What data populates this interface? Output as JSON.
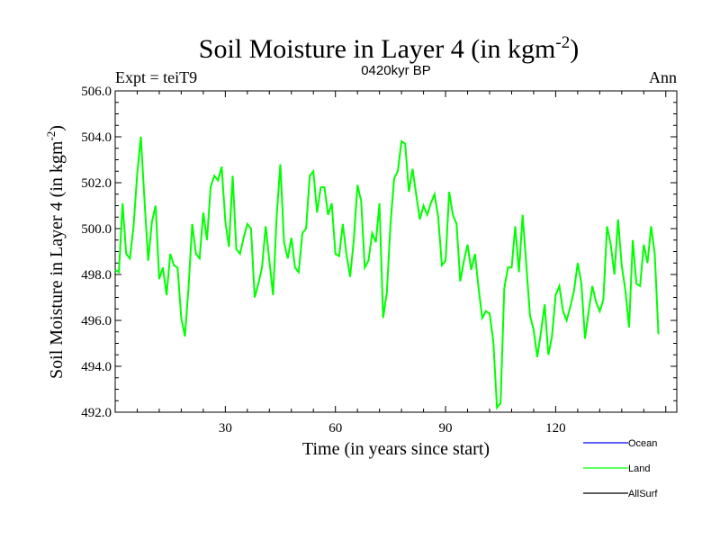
{
  "chart_data": {
    "type": "line",
    "title": "Soil Moisture in Layer 4 (in kgm",
    "title_sup": "-2",
    "title_end": ")",
    "subtitle_left": "Expt = teiT9",
    "subtitle_center": "0420kyr BP",
    "subtitle_right": "Ann",
    "xlabel": "Time (in years since start)",
    "ylabel": "Soil Moisture in Layer 4 (in kgm",
    "ylabel_sup": "-2",
    "ylabel_end": ")",
    "xlim": [
      0,
      153
    ],
    "ylim": [
      492.0,
      506.0
    ],
    "xticks": [
      30,
      60,
      90,
      120
    ],
    "yticks": [
      "492.0",
      "494.0",
      "496.0",
      "498.0",
      "500.0",
      "502.0",
      "504.0",
      "506.0"
    ],
    "legend": [
      {
        "name": "Ocean",
        "color": "#0000ff"
      },
      {
        "name": "Land",
        "color": "#00ff00"
      },
      {
        "name": "AllSurf",
        "color": "#000000"
      }
    ],
    "series": [
      {
        "name": "Land",
        "color": "#00ff00",
        "x_start": 0,
        "x_step": 1,
        "values": [
          498.2,
          498.1,
          501.1,
          498.9,
          498.7,
          500.1,
          502.4,
          504.0,
          501.2,
          498.6,
          500.3,
          501.0,
          497.8,
          498.3,
          497.1,
          498.9,
          498.4,
          498.3,
          496.1,
          495.3,
          497.5,
          500.2,
          498.9,
          498.7,
          500.7,
          499.5,
          501.8,
          502.3,
          502.1,
          502.7,
          500.3,
          499.2,
          502.3,
          499.1,
          498.9,
          499.6,
          500.2,
          500.0,
          497.0,
          497.6,
          498.3,
          500.1,
          498.6,
          497.1,
          500.6,
          502.8,
          499.4,
          498.7,
          499.6,
          498.3,
          498.1,
          499.8,
          500.0,
          502.3,
          502.5,
          500.7,
          501.8,
          501.8,
          500.6,
          501.1,
          498.9,
          498.8,
          500.2,
          498.9,
          497.9,
          499.5,
          501.9,
          501.2,
          498.3,
          498.6,
          499.8,
          499.4,
          501.1,
          496.1,
          497.2,
          500.2,
          502.2,
          502.5,
          503.8,
          503.7,
          501.6,
          502.6,
          501.5,
          500.4,
          501.0,
          500.6,
          501.1,
          501.5,
          500.5,
          498.4,
          498.6,
          501.6,
          500.6,
          500.2,
          497.7,
          498.6,
          499.3,
          498.2,
          498.9,
          497.4,
          496.1,
          496.4,
          496.3,
          495.1,
          492.2,
          492.4,
          497.4,
          498.3,
          498.3,
          500.1,
          498.1,
          500.6,
          498.4,
          496.2,
          495.6,
          494.4,
          495.5,
          496.7,
          494.5,
          495.3,
          497.1,
          497.5,
          496.4,
          496.0,
          496.6,
          497.3,
          498.5,
          497.6,
          495.2,
          496.4,
          497.5,
          496.8,
          496.4,
          496.9,
          500.1,
          499.3,
          498.0,
          500.4,
          498.4,
          497.3,
          495.7,
          499.5,
          497.6,
          497.5,
          499.3,
          498.5,
          500.1,
          498.9,
          495.4
        ]
      }
    ]
  }
}
